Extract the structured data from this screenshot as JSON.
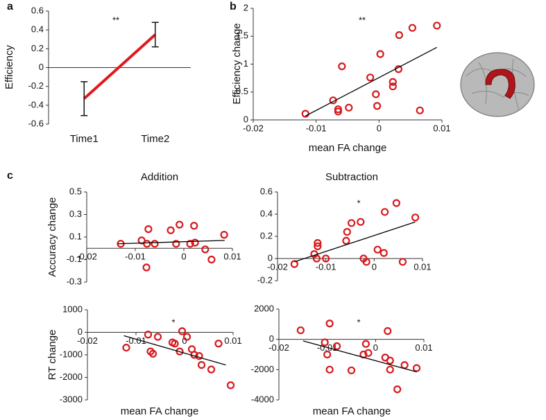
{
  "chart_data": [
    {
      "type": "line",
      "panel": "a",
      "ylabel": "Efficiency",
      "annotation": "**",
      "categories": [
        "Time1",
        "Time2"
      ],
      "values": [
        -0.33,
        0.35
      ],
      "errors": [
        0.18,
        0.13
      ],
      "color": "#e0191c",
      "ylim": [
        -0.6,
        0.6
      ],
      "yticks": [
        -0.6,
        -0.4,
        -0.2,
        0,
        0.2,
        0.4,
        0.6
      ]
    },
    {
      "type": "scatter",
      "panel": "b",
      "ylabel": "Efficiency change",
      "xlabel": "mean FA change",
      "annotation": "**",
      "color": "#d7191c",
      "x": [
        -0.0117,
        -0.0073,
        -0.0059,
        -0.0065,
        -0.0065,
        -0.0048,
        -0.0014,
        -0.0005,
        -0.0003,
        0.0002,
        0.0022,
        0.0022,
        0.0031,
        0.0032,
        0.0053,
        0.0065,
        0.0092
      ],
      "values": [
        0.11,
        0.35,
        0.96,
        0.19,
        0.15,
        0.22,
        0.76,
        0.46,
        0.25,
        1.18,
        0.68,
        0.6,
        0.91,
        1.52,
        1.65,
        0.17,
        1.69
      ],
      "fit_line": {
        "x": [
          -0.0117,
          0.0092
        ],
        "values": [
          0.07,
          1.3
        ]
      },
      "xlim": [
        -0.02,
        0.01
      ],
      "xticks": [
        -0.02,
        -0.01,
        0,
        0.01
      ],
      "ylim": [
        0,
        2
      ],
      "yticks": [
        0,
        0.5,
        1,
        1.5,
        2
      ]
    },
    {
      "type": "scatter",
      "panel": "c",
      "title": "Addition",
      "ylabel": "Accuracy change",
      "color": "#d7191c",
      "x": [
        -0.013,
        -0.0087,
        -0.0073,
        -0.0076,
        -0.006,
        -0.0077,
        -0.0027,
        -0.0009,
        -0.0016,
        0.0013,
        0.0021,
        0.0023,
        0.0044,
        0.0057,
        0.0083
      ],
      "values": [
        0.04,
        0.07,
        0.17,
        0.04,
        0.04,
        -0.17,
        0.16,
        0.21,
        0.04,
        0.04,
        0.2,
        0.05,
        -0.01,
        -0.1,
        0.12
      ],
      "fit_line": {
        "x": [
          -0.0136,
          0.0084
        ],
        "values": [
          0.04,
          0.07
        ]
      },
      "xlim": [
        -0.02,
        0.01
      ],
      "xticks": [
        -0.02,
        -0.01,
        0,
        0.01
      ],
      "ylim": [
        -0.3,
        0.5
      ],
      "yticks": [
        -0.3,
        -0.1,
        0.1,
        0.3,
        0.5
      ]
    },
    {
      "type": "scatter",
      "title": "Subtraction",
      "annotation": "*",
      "color": "#d7191c",
      "x": [
        -0.0165,
        -0.0124,
        -0.0117,
        -0.0117,
        -0.0119,
        -0.01,
        -0.0058,
        -0.0056,
        -0.0047,
        -0.0028,
        -0.0022,
        -0.0016,
        0.0007,
        0.002,
        0.0022,
        0.0046,
        0.0059,
        0.0085
      ],
      "values": [
        -0.05,
        0.04,
        0.14,
        0.11,
        0.0,
        0.0,
        0.16,
        0.24,
        0.32,
        0.33,
        0.0,
        -0.03,
        0.08,
        0.05,
        0.42,
        0.5,
        -0.03,
        0.37
      ],
      "fit_line": {
        "x": [
          -0.0165,
          0.0085
        ],
        "values": [
          -0.03,
          0.33
        ]
      },
      "xlim": [
        -0.02,
        0.01
      ],
      "xticks": [
        -0.02,
        -0.01,
        0,
        0.01
      ],
      "ylim": [
        -0.2,
        0.6
      ],
      "yticks": [
        -0.2,
        0,
        0.2,
        0.4,
        0.6
      ]
    },
    {
      "type": "scatter",
      "ylabel": "RT change",
      "xlabel": "mean FA change",
      "annotation": "*",
      "color": "#d7191c",
      "x": [
        -0.012,
        -0.0075,
        -0.007,
        -0.0065,
        -0.0055,
        -0.002,
        -0.0005,
        -0.0025,
        0.0005,
        -0.001,
        0.0015,
        0.002,
        0.003,
        0.0035,
        0.0055,
        0.007,
        0.0095
      ],
      "values": [
        -680,
        -100,
        -850,
        -950,
        -200,
        -500,
        50,
        -450,
        -200,
        -850,
        -750,
        -1000,
        -1050,
        -1450,
        -1650,
        -500,
        -2350
      ],
      "fit_line": {
        "x": [
          -0.0125,
          0.0085
        ],
        "values": [
          -150,
          -1450
        ]
      },
      "xlim": [
        -0.02,
        0.01
      ],
      "xticks": [
        -0.02,
        -0.01,
        0,
        0.01
      ],
      "ylim": [
        -3000,
        1000
      ],
      "yticks": [
        -3000,
        -2000,
        -1000,
        0,
        1000
      ]
    },
    {
      "type": "scatter",
      "xlabel": "mean FA change",
      "annotation": "*",
      "color": "#d7191c",
      "x": [
        -0.0155,
        -0.0095,
        -0.0105,
        -0.01,
        -0.0095,
        -0.008,
        -0.005,
        -0.002,
        -0.0025,
        -0.0015,
        0.002,
        0.003,
        0.0025,
        0.003,
        0.006,
        0.0045,
        0.0085
      ],
      "values": [
        600,
        1050,
        -200,
        -1000,
        -2000,
        -450,
        -2050,
        -300,
        -1000,
        -900,
        -1200,
        -1400,
        550,
        -2000,
        -1700,
        -3300,
        -1900
      ],
      "fit_line": {
        "x": [
          -0.015,
          0.0085
        ],
        "values": [
          -100,
          -2150
        ]
      },
      "xlim": [
        -0.02,
        0.01
      ],
      "xticks": [
        -0.02,
        -0.01,
        0,
        0.01
      ],
      "ylim": [
        -4000,
        2000
      ],
      "yticks": [
        -4000,
        -2000,
        0,
        2000
      ]
    }
  ]
}
